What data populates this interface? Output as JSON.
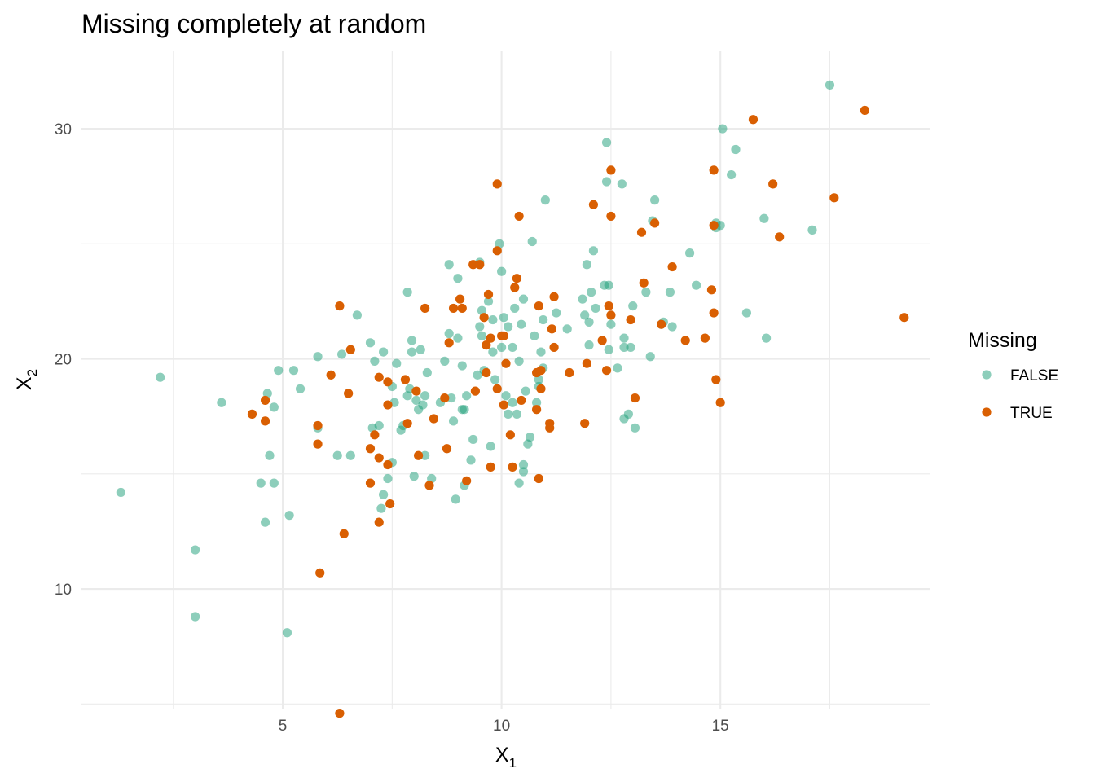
{
  "chart_data": {
    "type": "scatter",
    "title": "Missing completely at random",
    "xlabel": "X",
    "xlabel_sub": "1",
    "ylabel": "X",
    "ylabel_sub": "2",
    "xlim": [
      0.4,
      19.8
    ],
    "ylim": [
      4.8,
      33.4
    ],
    "x_ticks": [
      5,
      10,
      15
    ],
    "y_ticks": [
      10,
      20,
      30
    ],
    "grid": true,
    "legend": {
      "title": "Missing",
      "position": "right",
      "entries": [
        {
          "label": "FALSE",
          "color": "#1b9e77",
          "opacity": 0.5
        },
        {
          "label": "TRUE",
          "color": "#d95f02",
          "opacity": 1.0
        }
      ]
    },
    "series": [
      {
        "name": "FALSE",
        "color": "#1b9e77",
        "opacity": 0.5,
        "points": [
          [
            1.3,
            14.2
          ],
          [
            2.2,
            19.2
          ],
          [
            3.0,
            11.7
          ],
          [
            3.0,
            8.8
          ],
          [
            3.6,
            18.1
          ],
          [
            4.5,
            14.6
          ],
          [
            4.6,
            12.9
          ],
          [
            4.65,
            18.5
          ],
          [
            4.7,
            15.8
          ],
          [
            4.8,
            14.6
          ],
          [
            4.8,
            17.9
          ],
          [
            4.9,
            19.5
          ],
          [
            5.1,
            8.1
          ],
          [
            5.15,
            13.2
          ],
          [
            5.25,
            19.5
          ],
          [
            5.4,
            18.7
          ],
          [
            5.8,
            20.1
          ],
          [
            5.8,
            17.0
          ],
          [
            6.25,
            15.8
          ],
          [
            6.35,
            20.2
          ],
          [
            6.55,
            15.8
          ],
          [
            6.7,
            21.9
          ],
          [
            7.0,
            20.7
          ],
          [
            7.05,
            17.0
          ],
          [
            7.1,
            19.9
          ],
          [
            7.2,
            17.1
          ],
          [
            7.25,
            13.5
          ],
          [
            7.3,
            20.3
          ],
          [
            7.3,
            14.1
          ],
          [
            7.4,
            14.8
          ],
          [
            7.5,
            15.5
          ],
          [
            7.5,
            18.8
          ],
          [
            7.55,
            18.1
          ],
          [
            7.6,
            19.8
          ],
          [
            7.7,
            16.9
          ],
          [
            7.75,
            17.1
          ],
          [
            7.85,
            18.4
          ],
          [
            7.85,
            22.9
          ],
          [
            7.9,
            18.7
          ],
          [
            7.95,
            20.8
          ],
          [
            7.95,
            20.3
          ],
          [
            8.0,
            14.9
          ],
          [
            8.05,
            18.2
          ],
          [
            8.1,
            17.8
          ],
          [
            8.15,
            20.4
          ],
          [
            8.2,
            18.0
          ],
          [
            8.25,
            15.8
          ],
          [
            8.25,
            18.4
          ],
          [
            8.3,
            19.4
          ],
          [
            8.4,
            14.8
          ],
          [
            8.6,
            18.1
          ],
          [
            8.7,
            19.9
          ],
          [
            8.8,
            24.1
          ],
          [
            8.8,
            21.1
          ],
          [
            8.85,
            18.3
          ],
          [
            8.9,
            17.3
          ],
          [
            8.95,
            13.9
          ],
          [
            9.0,
            23.5
          ],
          [
            9.0,
            20.9
          ],
          [
            9.1,
            19.7
          ],
          [
            9.1,
            17.8
          ],
          [
            9.15,
            17.8
          ],
          [
            9.15,
            14.5
          ],
          [
            9.2,
            18.4
          ],
          [
            9.3,
            15.6
          ],
          [
            9.35,
            16.5
          ],
          [
            9.45,
            19.3
          ],
          [
            9.5,
            24.2
          ],
          [
            9.5,
            21.4
          ],
          [
            9.55,
            22.1
          ],
          [
            9.55,
            21.0
          ],
          [
            9.6,
            19.5
          ],
          [
            9.7,
            22.5
          ],
          [
            9.75,
            16.2
          ],
          [
            9.8,
            21.7
          ],
          [
            9.8,
            20.3
          ],
          [
            9.85,
            19.1
          ],
          [
            9.95,
            25.0
          ],
          [
            10.0,
            23.8
          ],
          [
            10.0,
            20.5
          ],
          [
            10.05,
            21.8
          ],
          [
            10.1,
            18.4
          ],
          [
            10.15,
            21.4
          ],
          [
            10.15,
            17.6
          ],
          [
            10.25,
            20.5
          ],
          [
            10.25,
            18.1
          ],
          [
            10.3,
            22.2
          ],
          [
            10.35,
            17.6
          ],
          [
            10.4,
            19.9
          ],
          [
            10.4,
            14.6
          ],
          [
            10.45,
            21.5
          ],
          [
            10.5,
            22.6
          ],
          [
            10.5,
            15.4
          ],
          [
            10.5,
            15.1
          ],
          [
            10.55,
            18.6
          ],
          [
            10.6,
            16.3
          ],
          [
            10.65,
            16.6
          ],
          [
            10.7,
            25.1
          ],
          [
            10.75,
            21.0
          ],
          [
            10.8,
            18.1
          ],
          [
            10.85,
            19.1
          ],
          [
            10.85,
            18.8
          ],
          [
            10.9,
            20.3
          ],
          [
            10.95,
            21.7
          ],
          [
            10.95,
            19.6
          ],
          [
            11.0,
            26.9
          ],
          [
            11.25,
            22.0
          ],
          [
            11.5,
            21.3
          ],
          [
            11.85,
            22.6
          ],
          [
            11.9,
            21.9
          ],
          [
            11.95,
            24.1
          ],
          [
            12.0,
            21.6
          ],
          [
            12.0,
            20.6
          ],
          [
            12.05,
            22.9
          ],
          [
            12.1,
            24.7
          ],
          [
            12.15,
            22.2
          ],
          [
            12.35,
            23.2
          ],
          [
            12.4,
            29.4
          ],
          [
            12.4,
            27.7
          ],
          [
            12.45,
            23.2
          ],
          [
            12.45,
            20.4
          ],
          [
            12.5,
            21.5
          ],
          [
            12.65,
            19.6
          ],
          [
            12.75,
            27.6
          ],
          [
            12.8,
            20.9
          ],
          [
            12.8,
            20.5
          ],
          [
            12.8,
            17.4
          ],
          [
            12.9,
            17.6
          ],
          [
            12.95,
            20.5
          ],
          [
            13.0,
            22.3
          ],
          [
            13.05,
            17.0
          ],
          [
            13.3,
            22.9
          ],
          [
            13.4,
            20.1
          ],
          [
            13.45,
            26.0
          ],
          [
            13.5,
            26.9
          ],
          [
            13.65,
            21.5
          ],
          [
            13.7,
            21.6
          ],
          [
            13.85,
            22.9
          ],
          [
            13.9,
            21.4
          ],
          [
            14.3,
            24.6
          ],
          [
            14.45,
            23.2
          ],
          [
            14.9,
            25.9
          ],
          [
            14.9,
            25.7
          ],
          [
            15.0,
            25.8
          ],
          [
            15.05,
            30.0
          ],
          [
            15.25,
            28.0
          ],
          [
            15.35,
            29.1
          ],
          [
            15.6,
            22.0
          ],
          [
            16.0,
            26.1
          ],
          [
            16.05,
            20.9
          ],
          [
            17.1,
            25.6
          ],
          [
            17.5,
            31.9
          ]
        ]
      },
      {
        "name": "TRUE",
        "color": "#d95f02",
        "opacity": 1.0,
        "points": [
          [
            4.3,
            17.6
          ],
          [
            4.6,
            18.2
          ],
          [
            4.6,
            17.3
          ],
          [
            5.8,
            17.1
          ],
          [
            5.8,
            16.3
          ],
          [
            5.85,
            10.7
          ],
          [
            6.1,
            19.3
          ],
          [
            6.3,
            22.3
          ],
          [
            6.3,
            4.6
          ],
          [
            6.4,
            12.4
          ],
          [
            6.5,
            18.5
          ],
          [
            6.55,
            20.4
          ],
          [
            7.0,
            16.1
          ],
          [
            7.0,
            14.6
          ],
          [
            7.1,
            16.7
          ],
          [
            7.2,
            19.2
          ],
          [
            7.2,
            15.7
          ],
          [
            7.2,
            12.9
          ],
          [
            7.4,
            19.0
          ],
          [
            7.4,
            18.0
          ],
          [
            7.4,
            15.4
          ],
          [
            7.45,
            13.7
          ],
          [
            7.8,
            19.1
          ],
          [
            7.85,
            17.2
          ],
          [
            8.05,
            18.6
          ],
          [
            8.1,
            15.8
          ],
          [
            8.25,
            22.2
          ],
          [
            8.35,
            14.5
          ],
          [
            8.45,
            17.4
          ],
          [
            8.7,
            18.3
          ],
          [
            8.75,
            16.1
          ],
          [
            8.8,
            20.7
          ],
          [
            8.9,
            22.2
          ],
          [
            9.05,
            22.6
          ],
          [
            9.1,
            22.2
          ],
          [
            9.2,
            14.7
          ],
          [
            9.35,
            24.1
          ],
          [
            9.4,
            18.6
          ],
          [
            9.5,
            24.1
          ],
          [
            9.6,
            21.8
          ],
          [
            9.65,
            20.6
          ],
          [
            9.65,
            19.4
          ],
          [
            9.7,
            22.8
          ],
          [
            9.75,
            20.9
          ],
          [
            9.75,
            15.3
          ],
          [
            9.9,
            27.6
          ],
          [
            9.9,
            24.7
          ],
          [
            9.9,
            18.7
          ],
          [
            10.0,
            21.0
          ],
          [
            10.05,
            18.0
          ],
          [
            10.05,
            21.0
          ],
          [
            10.1,
            19.8
          ],
          [
            10.2,
            16.7
          ],
          [
            10.25,
            15.3
          ],
          [
            10.3,
            23.1
          ],
          [
            10.35,
            23.5
          ],
          [
            10.4,
            26.2
          ],
          [
            10.45,
            18.2
          ],
          [
            10.8,
            19.4
          ],
          [
            10.8,
            17.8
          ],
          [
            10.85,
            14.8
          ],
          [
            10.85,
            22.3
          ],
          [
            10.9,
            19.5
          ],
          [
            10.9,
            18.7
          ],
          [
            11.1,
            17.2
          ],
          [
            11.1,
            17.0
          ],
          [
            11.15,
            21.3
          ],
          [
            11.2,
            20.5
          ],
          [
            11.2,
            22.7
          ],
          [
            11.55,
            19.4
          ],
          [
            11.9,
            17.2
          ],
          [
            11.95,
            19.8
          ],
          [
            12.1,
            26.7
          ],
          [
            12.3,
            20.8
          ],
          [
            12.4,
            19.5
          ],
          [
            12.45,
            22.3
          ],
          [
            12.5,
            21.9
          ],
          [
            12.5,
            26.2
          ],
          [
            12.5,
            28.2
          ],
          [
            12.95,
            21.7
          ],
          [
            13.05,
            18.3
          ],
          [
            13.2,
            25.5
          ],
          [
            13.25,
            23.3
          ],
          [
            13.5,
            25.9
          ],
          [
            13.65,
            21.5
          ],
          [
            13.9,
            24.0
          ],
          [
            14.2,
            20.8
          ],
          [
            14.65,
            20.9
          ],
          [
            14.8,
            23.0
          ],
          [
            14.85,
            22.0
          ],
          [
            14.85,
            25.8
          ],
          [
            14.85,
            28.2
          ],
          [
            14.9,
            19.1
          ],
          [
            15.0,
            18.1
          ],
          [
            15.75,
            30.4
          ],
          [
            16.2,
            27.6
          ],
          [
            16.35,
            25.3
          ],
          [
            17.6,
            27.0
          ],
          [
            18.3,
            30.8
          ],
          [
            19.2,
            21.8
          ]
        ]
      }
    ]
  }
}
